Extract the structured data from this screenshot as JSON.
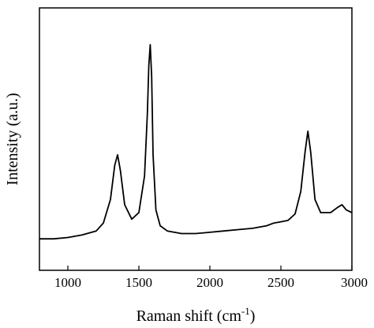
{
  "chart_data": {
    "type": "line",
    "title": "",
    "xlabel": "Raman shift (cm",
    "xlabel_sup": "-1",
    "xlabel_close": ")",
    "ylabel": "Intensity (a.u.)",
    "xlim": [
      800,
      3000
    ],
    "ylim": [
      0,
      1
    ],
    "x_ticks": [
      1000,
      1500,
      2000,
      2500,
      3000
    ],
    "x_tick_labels": [
      "1000",
      "1500",
      "2000",
      "2500",
      "3000"
    ],
    "y_ticks_shown": false,
    "grid": false,
    "legend": "none",
    "line_color": "#000000",
    "series": [
      {
        "x": [
          800,
          900,
          1000,
          1100,
          1200,
          1250,
          1300,
          1330,
          1350,
          1370,
          1400,
          1450,
          1500,
          1540,
          1560,
          1570,
          1580,
          1590,
          1600,
          1620,
          1650,
          1700,
          1800,
          1900,
          2000,
          2100,
          2200,
          2300,
          2400,
          2450,
          2500,
          2550,
          2600,
          2640,
          2670,
          2690,
          2710,
          2740,
          2780,
          2850,
          2900,
          2930,
          2960,
          3000
        ],
        "y": [
          0.12,
          0.12,
          0.125,
          0.135,
          0.15,
          0.18,
          0.27,
          0.4,
          0.44,
          0.38,
          0.25,
          0.195,
          0.22,
          0.36,
          0.6,
          0.78,
          0.86,
          0.74,
          0.44,
          0.23,
          0.17,
          0.15,
          0.14,
          0.14,
          0.145,
          0.15,
          0.155,
          0.16,
          0.17,
          0.18,
          0.185,
          0.19,
          0.215,
          0.3,
          0.45,
          0.53,
          0.45,
          0.27,
          0.22,
          0.22,
          0.24,
          0.25,
          0.23,
          0.22
        ]
      }
    ]
  }
}
